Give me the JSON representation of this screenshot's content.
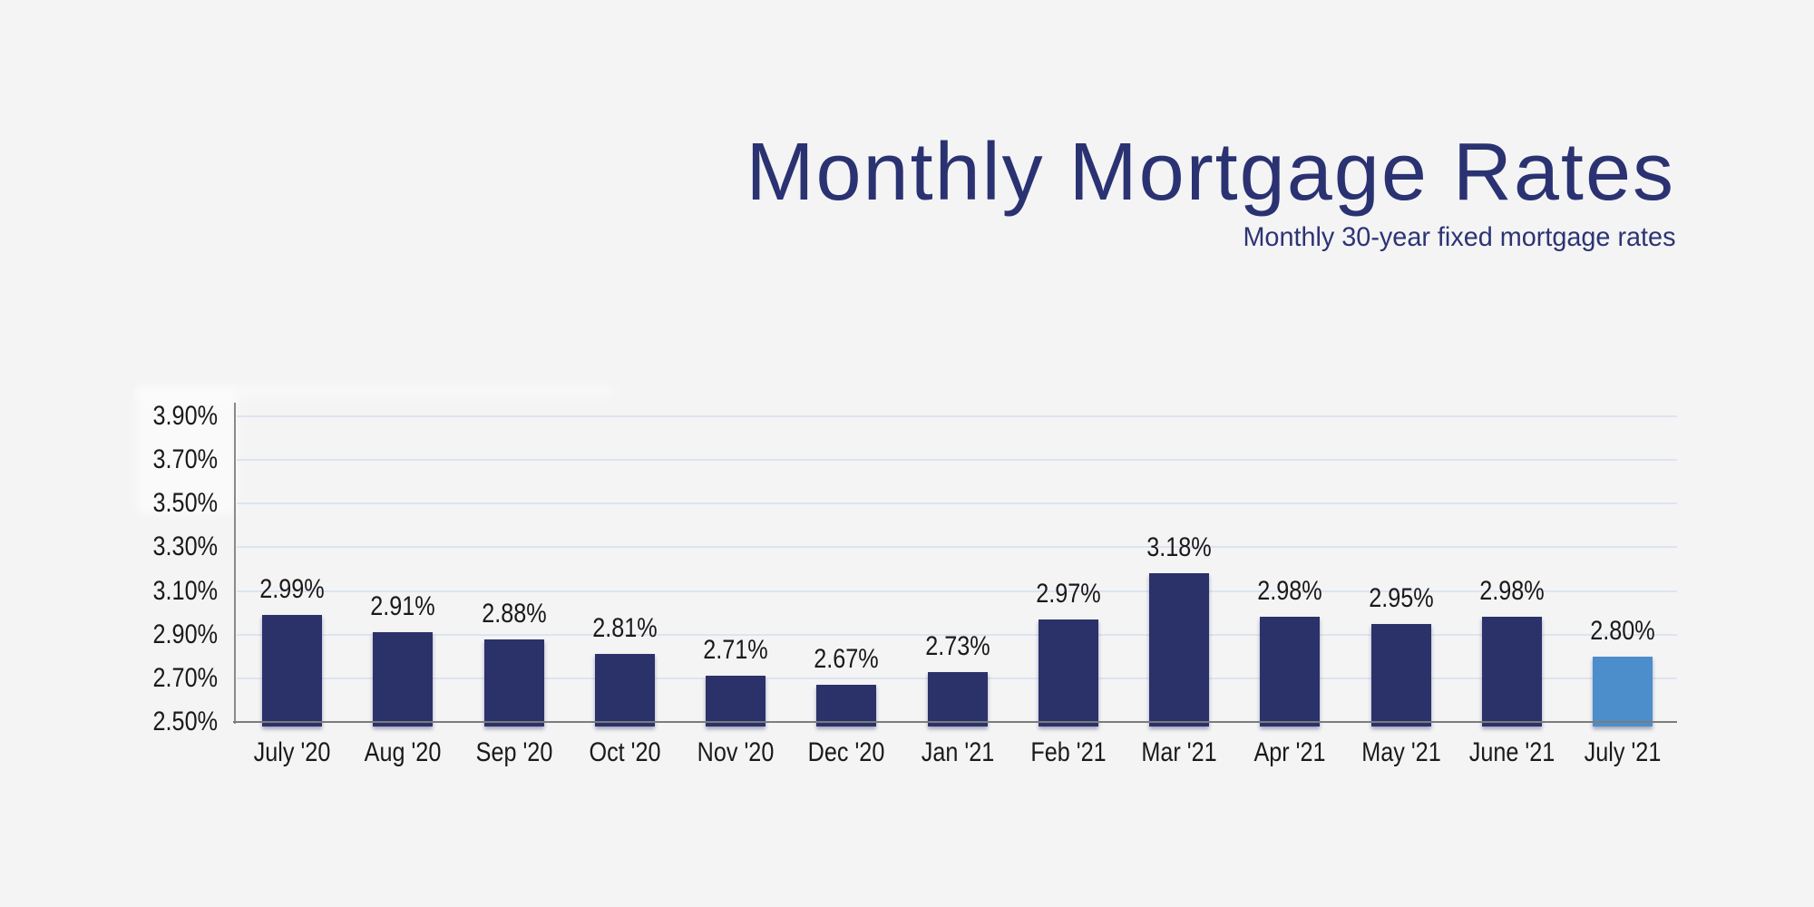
{
  "header": {
    "title": "Monthly Mortgage Rates",
    "subtitle": "Monthly 30-year fixed mortgage rates"
  },
  "colors": {
    "background": "#f4f4f5",
    "title_text": "#2b3272",
    "bar": "#2b3169",
    "bar_highlight": "#4b8ecb",
    "gridline": "#dde4ef",
    "axis_line": "#7c7c7c",
    "label_text": "#1a1a1a"
  },
  "chart_data": {
    "type": "bar",
    "title": "Monthly Mortgage Rates",
    "subtitle": "Monthly 30-year fixed mortgage rates",
    "categories": [
      "July '20",
      "Aug '20",
      "Sep '20",
      "Oct '20",
      "Nov '20",
      "Dec '20",
      "Jan '21",
      "Feb '21",
      "Mar '21",
      "Apr '21",
      "May '21",
      "June '21",
      "July '21"
    ],
    "values": [
      2.99,
      2.91,
      2.88,
      2.81,
      2.71,
      2.67,
      2.73,
      2.97,
      3.18,
      2.98,
      2.95,
      2.98,
      2.8
    ],
    "value_labels": [
      "2.99%",
      "2.91%",
      "2.88%",
      "2.81%",
      "2.71%",
      "2.67%",
      "2.73%",
      "2.97%",
      "3.18%",
      "2.98%",
      "2.95%",
      "2.98%",
      "2.80%"
    ],
    "xlabel": "",
    "ylabel": "",
    "ylim": [
      2.5,
      3.9
    ],
    "ytick_step": 0.2,
    "ytick_labels": [
      "2.50%",
      "2.70%",
      "2.90%",
      "3.10%",
      "3.30%",
      "3.50%",
      "3.70%",
      "3.90%"
    ],
    "grid": "horizontal",
    "legend": "none",
    "highlight_index": 12,
    "highlight_category": "July '21"
  }
}
